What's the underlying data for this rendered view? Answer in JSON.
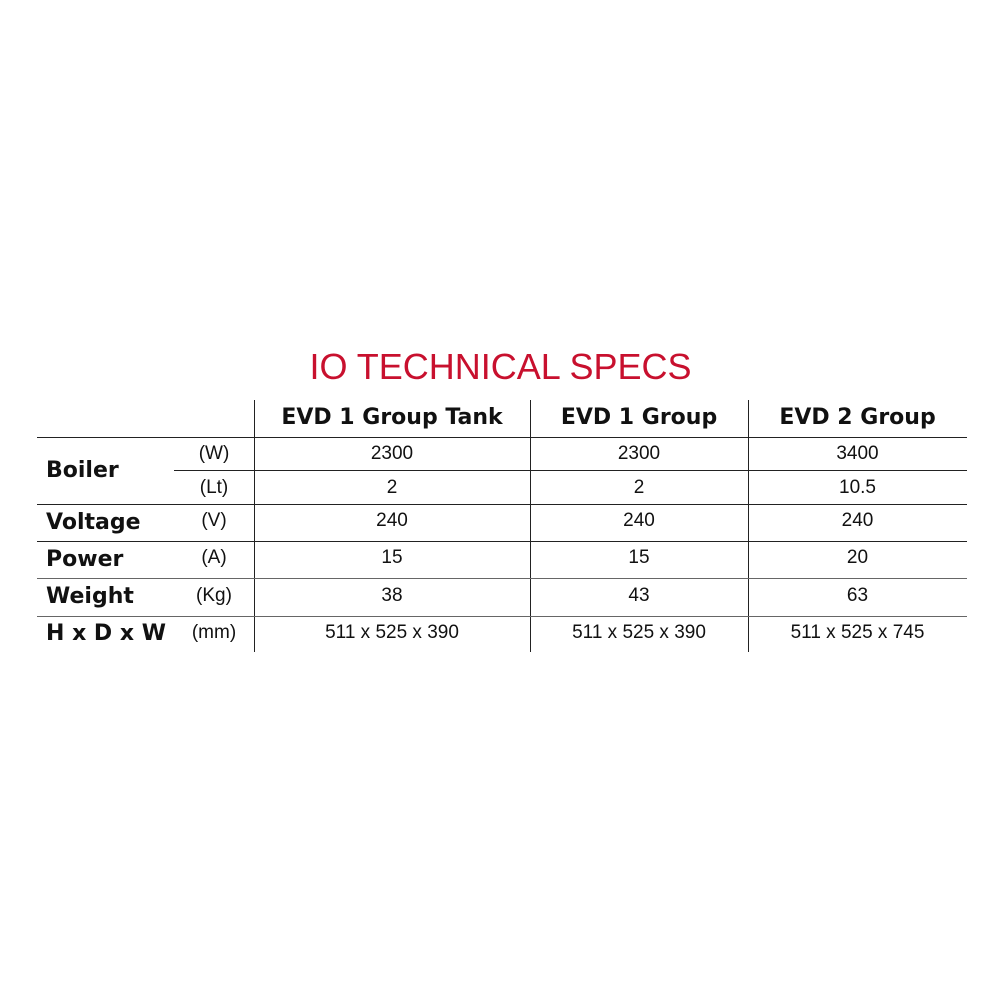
{
  "title": "IO TECHNICAL SPECS",
  "columns": [
    "EVD 1 Group Tank",
    "EVD 1 Group",
    "EVD 2 Group"
  ],
  "rows": [
    {
      "label": "Boiler",
      "unit": "(W)",
      "values": [
        "2300",
        "2300",
        "3400"
      ]
    },
    {
      "label": "",
      "unit": "(Lt)",
      "values": [
        "2",
        "2",
        "10.5"
      ]
    },
    {
      "label": "Voltage",
      "unit": "(V)",
      "values": [
        "240",
        "240",
        "240"
      ]
    },
    {
      "label": "Power",
      "unit": "(A)",
      "values": [
        "15",
        "15",
        "20"
      ]
    },
    {
      "label": "Weight",
      "unit": "(Kg)",
      "values": [
        "38",
        "43",
        "63"
      ]
    },
    {
      "label": "H x D x W",
      "unit": "(mm)",
      "values": [
        "511 x 525 x 390",
        "511 x 525 x 390",
        "511 x 525 x 745"
      ]
    }
  ],
  "accent": "#c8102e"
}
